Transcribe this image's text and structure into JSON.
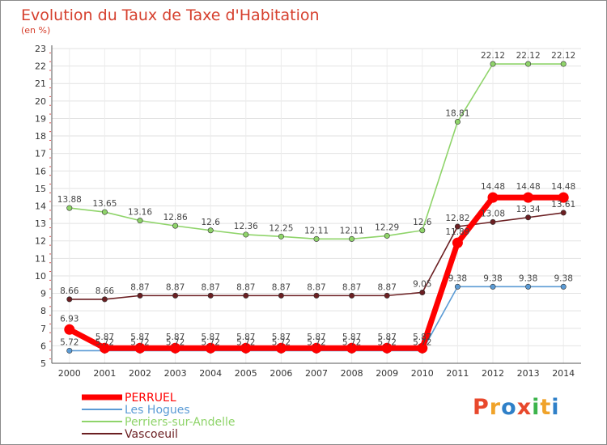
{
  "chart_data": {
    "type": "line",
    "title": "Evolution du Taux de Taxe d'Habitation",
    "subtitle": "(en %)",
    "x": [
      "2000",
      "2001",
      "2002",
      "2003",
      "2004",
      "2005",
      "2006",
      "2007",
      "2008",
      "2009",
      "2010",
      "2011",
      "2012",
      "2013",
      "2014"
    ],
    "ylim": [
      5,
      23
    ],
    "yticks": [
      5,
      6,
      7,
      8,
      9,
      10,
      11,
      12,
      13,
      14,
      15,
      16,
      17,
      18,
      19,
      20,
      21,
      22,
      23
    ],
    "grid": true,
    "legend_position": "bottom-left",
    "series": [
      {
        "name": "PERRUEL",
        "color": "#ff0000",
        "values": [
          6.93,
          5.87,
          5.87,
          5.87,
          5.87,
          5.87,
          5.87,
          5.87,
          5.87,
          5.87,
          5.87,
          11.89,
          14.48,
          14.48,
          14.48
        ],
        "labels": [
          "6.93",
          "5.87",
          "5.87",
          "5.87",
          "5.87",
          "5.87",
          "5.87",
          "5.87",
          "5.87",
          "5.87",
          "5.87",
          "11.89",
          "14.48",
          "14.48",
          "14.48"
        ]
      },
      {
        "name": "Les Hogues",
        "color": "#5b9bd5",
        "values": [
          5.72,
          5.72,
          5.72,
          5.72,
          5.72,
          5.72,
          5.72,
          5.72,
          5.72,
          5.72,
          5.72,
          9.38,
          9.38,
          9.38,
          9.38
        ],
        "labels": [
          "5.72",
          "5.72",
          "5.72",
          "5.72",
          "5.72",
          "5.72",
          "5.72",
          "5.72",
          "5.72",
          "5.72",
          "5.72",
          "9.38",
          "9.38",
          "9.38",
          "9.38"
        ]
      },
      {
        "name": "Perriers-sur-Andelle",
        "color": "#8fd46a",
        "values": [
          13.88,
          13.65,
          13.16,
          12.86,
          12.6,
          12.36,
          12.25,
          12.11,
          12.11,
          12.29,
          12.6,
          18.81,
          22.12,
          22.12,
          22.12
        ],
        "labels": [
          "13.88",
          "13.65",
          "13.16",
          "12.86",
          "12.6",
          "12.36",
          "12.25",
          "12.11",
          "12.11",
          "12.29",
          "12.6",
          "18.81",
          "22.12",
          "22.12",
          "22.12"
        ]
      },
      {
        "name": "Vascoeuil",
        "color": "#6b1f22",
        "values": [
          8.66,
          8.66,
          8.87,
          8.87,
          8.87,
          8.87,
          8.87,
          8.87,
          8.87,
          8.87,
          9.05,
          12.82,
          13.08,
          13.34,
          13.61
        ],
        "labels": [
          "8.66",
          "8.66",
          "8.87",
          "8.87",
          "8.87",
          "8.87",
          "8.87",
          "8.87",
          "8.87",
          "8.87",
          "9.05",
          "12.82",
          "13.08",
          "13.34",
          "13.61"
        ]
      }
    ]
  },
  "logo": {
    "text": "Proxiti",
    "colors": [
      "#e8482c",
      "#f0a32a",
      "#2f80c8",
      "#e8482c",
      "#3cb44b",
      "#f0a32a",
      "#2f80c8"
    ]
  }
}
